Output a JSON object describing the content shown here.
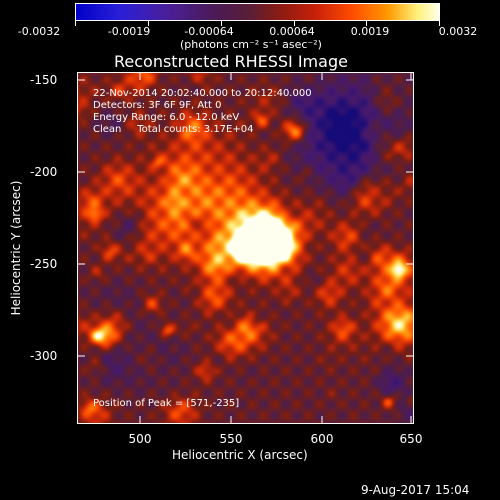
{
  "colorbar": {
    "tick_labels": [
      "-0.0032",
      "-0.0019",
      "-0.00064",
      "0.00064",
      "0.0019",
      "0.0032"
    ],
    "units_label": "(photons cm⁻² s⁻¹ asec⁻²)",
    "colors": [
      "#0000c8",
      "#4b1a57",
      "#8a1c12",
      "#ff4b00",
      "#ff9a00",
      "#ffffe8"
    ]
  },
  "plot": {
    "title": "Reconstructed RHESSI Image",
    "info_lines": [
      "22-Nov-2014 20:02:40.000 to 20:12:40.000",
      "Detectors: 3F 6F 9F, Att 0",
      "Energy Range: 6.0 - 12.0 keV",
      "Clean     Total counts: 3.17E+04"
    ],
    "peak_label": "Position of Peak = [571,-235]",
    "x_tick_labels": [
      "500",
      "550",
      "600",
      "650"
    ],
    "y_tick_labels": [
      "-150",
      "-200",
      "-250",
      "-300"
    ],
    "xlabel": "Heliocentric X (arcsec)",
    "ylabel": "Heliocentric Y (arcsec)"
  },
  "footer": {
    "timestamp": "9-Aug-2017 15:04"
  }
}
